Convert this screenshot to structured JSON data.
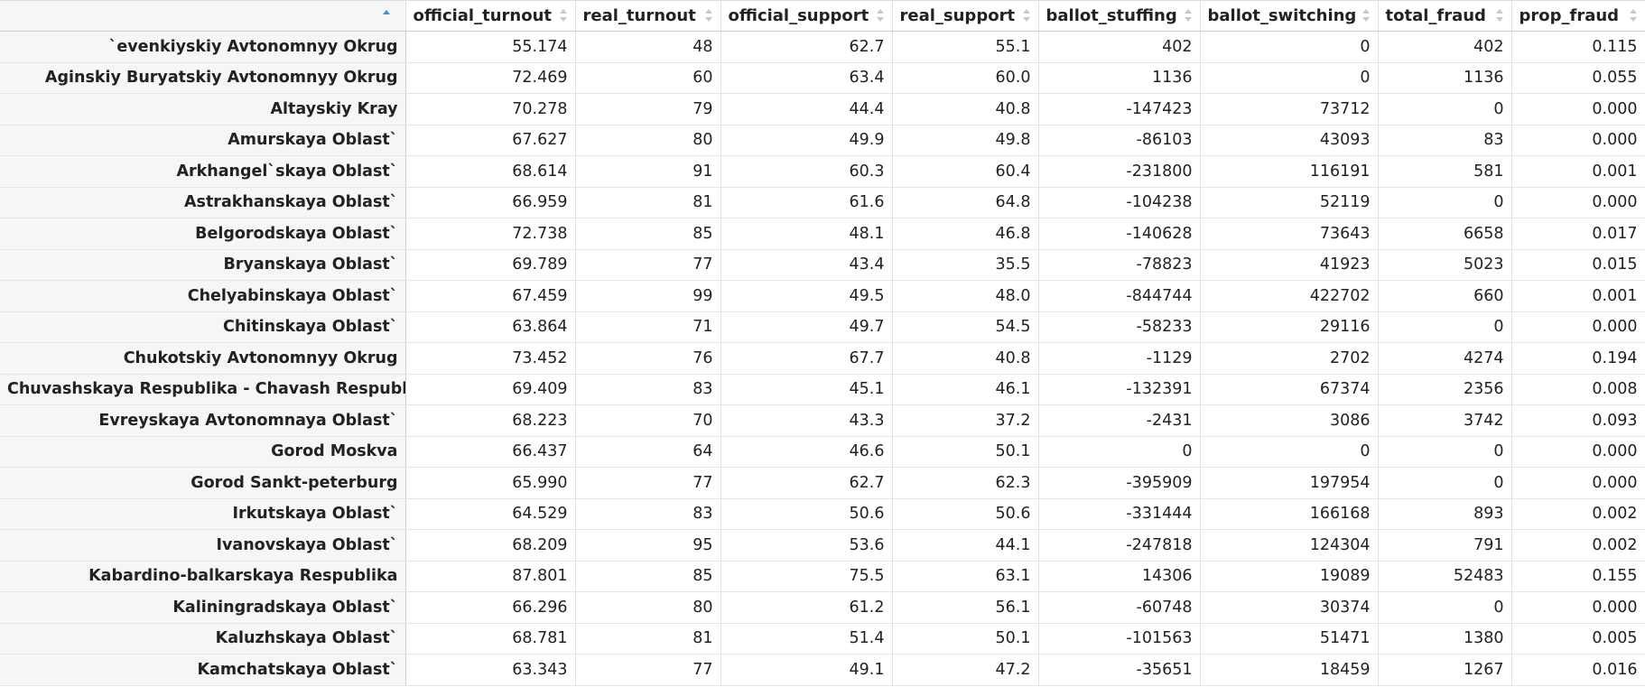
{
  "columns": [
    {
      "label": "",
      "sort": "asc"
    },
    {
      "label": "official_turnout",
      "sort": "none"
    },
    {
      "label": "real_turnout",
      "sort": "none"
    },
    {
      "label": "official_support",
      "sort": "none"
    },
    {
      "label": "real_support",
      "sort": "none"
    },
    {
      "label": "ballot_stuffing",
      "sort": "none"
    },
    {
      "label": "ballot_switching",
      "sort": "none"
    },
    {
      "label": "total_fraud",
      "sort": "none"
    },
    {
      "label": "prop_fraud",
      "sort": "none"
    }
  ],
  "colors": {
    "sort_active": "#3b8ee8",
    "sort_inactive": "#c8c8c8",
    "rowname_bg": "#f4f6f7"
  },
  "rows": [
    [
      "`evenkiyskiy Avtonomnyy Okrug",
      "55.174",
      "48",
      "62.7",
      "55.1",
      "402",
      "0",
      "402",
      "0.115"
    ],
    [
      "Aginskiy Buryatskiy Avtonomnyy Okrug",
      "72.469",
      "60",
      "63.4",
      "60.0",
      "1136",
      "0",
      "1136",
      "0.055"
    ],
    [
      "Altayskiy Kray",
      "70.278",
      "79",
      "44.4",
      "40.8",
      "-147423",
      "73712",
      "0",
      "0.000"
    ],
    [
      "Amurskaya Oblast`",
      "67.627",
      "80",
      "49.9",
      "49.8",
      "-86103",
      "43093",
      "83",
      "0.000"
    ],
    [
      "Arkhangel`skaya Oblast`",
      "68.614",
      "91",
      "60.3",
      "60.4",
      "-231800",
      "116191",
      "581",
      "0.001"
    ],
    [
      "Astrakhanskaya Oblast`",
      "66.959",
      "81",
      "61.6",
      "64.8",
      "-104238",
      "52119",
      "0",
      "0.000"
    ],
    [
      "Belgorodskaya Oblast`",
      "72.738",
      "85",
      "48.1",
      "46.8",
      "-140628",
      "73643",
      "6658",
      "0.017"
    ],
    [
      "Bryanskaya Oblast`",
      "69.789",
      "77",
      "43.4",
      "35.5",
      "-78823",
      "41923",
      "5023",
      "0.015"
    ],
    [
      "Chelyabinskaya Oblast`",
      "67.459",
      "99",
      "49.5",
      "48.0",
      "-844744",
      "422702",
      "660",
      "0.001"
    ],
    [
      "Chitinskaya Oblast`",
      "63.864",
      "71",
      "49.7",
      "54.5",
      "-58233",
      "29116",
      "0",
      "0.000"
    ],
    [
      "Chukotskiy Avtonomnyy Okrug",
      "73.452",
      "76",
      "67.7",
      "40.8",
      "-1129",
      "2702",
      "4274",
      "0.194"
    ],
    [
      "Chuvashskaya Respublika - Chavash Respubliki",
      "69.409",
      "83",
      "45.1",
      "46.1",
      "-132391",
      "67374",
      "2356",
      "0.008"
    ],
    [
      "Evreyskaya Avtonomnaya Oblast`",
      "68.223",
      "70",
      "43.3",
      "37.2",
      "-2431",
      "3086",
      "3742",
      "0.093"
    ],
    [
      "Gorod Moskva",
      "66.437",
      "64",
      "46.6",
      "50.1",
      "0",
      "0",
      "0",
      "0.000"
    ],
    [
      "Gorod Sankt-peterburg",
      "65.990",
      "77",
      "62.7",
      "62.3",
      "-395909",
      "197954",
      "0",
      "0.000"
    ],
    [
      "Irkutskaya Oblast`",
      "64.529",
      "83",
      "50.6",
      "50.6",
      "-331444",
      "166168",
      "893",
      "0.002"
    ],
    [
      "Ivanovskaya Oblast`",
      "68.209",
      "95",
      "53.6",
      "44.1",
      "-247818",
      "124304",
      "791",
      "0.002"
    ],
    [
      "Kabardino-balkarskaya Respublika",
      "87.801",
      "85",
      "75.5",
      "63.1",
      "14306",
      "19089",
      "52483",
      "0.155"
    ],
    [
      "Kaliningradskaya Oblast`",
      "66.296",
      "80",
      "61.2",
      "56.1",
      "-60748",
      "30374",
      "0",
      "0.000"
    ],
    [
      "Kaluzhskaya Oblast`",
      "68.781",
      "81",
      "51.4",
      "50.1",
      "-101563",
      "51471",
      "1380",
      "0.005"
    ],
    [
      "Kamchatskaya Oblast`",
      "63.343",
      "77",
      "49.1",
      "47.2",
      "-35651",
      "18459",
      "1267",
      "0.016"
    ]
  ]
}
